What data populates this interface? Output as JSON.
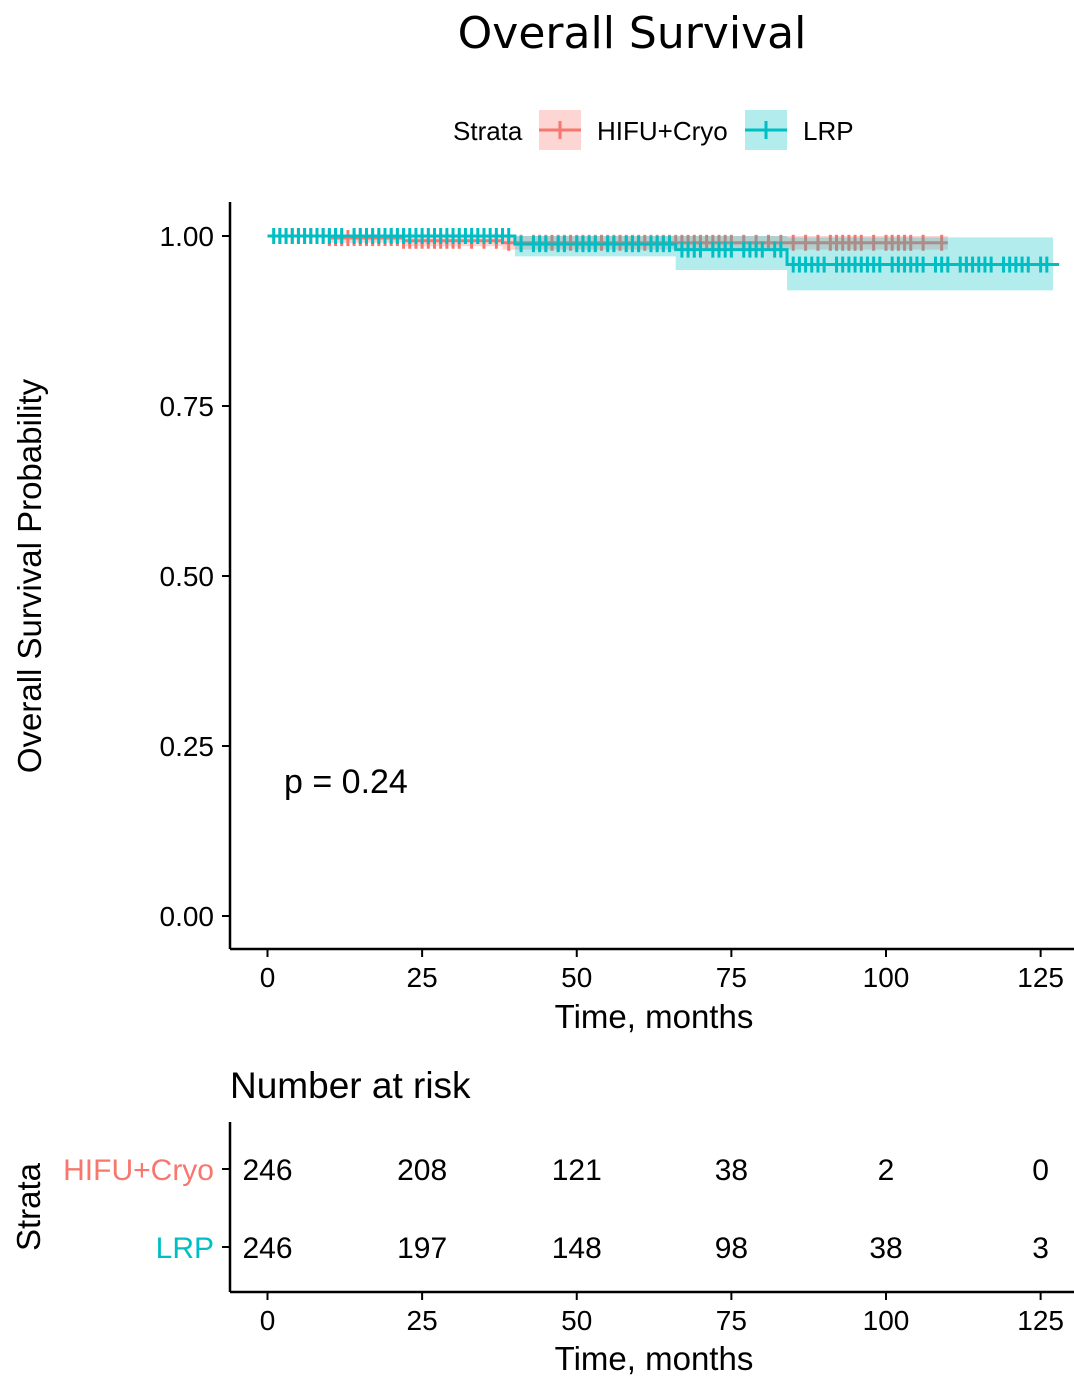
{
  "chart_data": {
    "type": "line",
    "title": "Overall Survival",
    "xlabel": "Time, months",
    "ylabel": "Overall Survival Probability",
    "xlim": [
      0,
      130
    ],
    "ylim": [
      0,
      1.05
    ],
    "x_ticks": [
      "0",
      "25",
      "50",
      "75",
      "100",
      "125"
    ],
    "y_ticks": [
      "0.00",
      "0.25",
      "0.50",
      "0.75",
      "1.00"
    ],
    "legend": {
      "title": "Strata",
      "position": "top"
    },
    "annotation": "p = 0.24",
    "grid": false,
    "series": [
      {
        "name": "HIFU+Cryo",
        "color": "#F8766D",
        "steps": [
          [
            0,
            1.0
          ],
          [
            10,
            0.997
          ],
          [
            22,
            0.993
          ],
          [
            38,
            0.99
          ],
          [
            110,
            0.99
          ]
        ],
        "ci": [
          [
            0,
            1.0,
            1.0
          ],
          [
            10,
            0.99,
            1.0
          ],
          [
            22,
            0.985,
            1.0
          ],
          [
            38,
            0.98,
            1.0
          ],
          [
            110,
            0.975,
            1.0
          ]
        ],
        "censors": [
          2,
          3,
          4,
          5,
          6,
          7,
          8,
          9,
          10,
          11,
          12,
          13,
          14,
          15,
          16,
          17,
          18,
          19,
          20,
          21,
          22,
          23,
          24,
          25,
          26,
          27,
          28,
          29,
          30,
          31,
          33,
          35,
          37,
          39,
          41,
          43,
          44,
          45,
          46,
          47,
          48,
          49,
          50,
          51,
          52,
          53,
          54,
          55,
          56,
          57,
          58,
          59,
          60,
          61,
          62,
          63,
          64,
          65,
          66,
          67,
          68,
          69,
          70,
          71,
          72,
          73,
          74,
          75,
          77,
          79,
          81,
          83,
          85,
          87,
          89,
          91,
          92,
          93,
          94,
          95,
          96,
          98,
          100,
          101,
          102,
          103,
          104,
          106,
          109
        ]
      },
      {
        "name": "LRP",
        "color": "#00BFC4",
        "steps": [
          [
            0,
            1.0
          ],
          [
            40,
            0.988
          ],
          [
            66,
            0.98
          ],
          [
            84,
            0.958
          ],
          [
            128,
            0.958
          ]
        ],
        "ci": [
          [
            0,
            1.0,
            1.0
          ],
          [
            40,
            0.97,
            1.0
          ],
          [
            66,
            0.95,
            1.0
          ],
          [
            84,
            0.92,
            0.998
          ],
          [
            127,
            0.92,
            0.998
          ]
        ],
        "censors": [
          1,
          2,
          3,
          4,
          5,
          6,
          7,
          8,
          9,
          10,
          11,
          12,
          14,
          15,
          16,
          17,
          18,
          19,
          20,
          21,
          22,
          23,
          24,
          25,
          26,
          27,
          28,
          29,
          30,
          31,
          32,
          33,
          34,
          35,
          36,
          37,
          38,
          39,
          41,
          43,
          44,
          45,
          47,
          48,
          50,
          51,
          52,
          53,
          55,
          56,
          58,
          59,
          60,
          62,
          63,
          64,
          65,
          67,
          68,
          69,
          70,
          72,
          73,
          74,
          75,
          77,
          78,
          79,
          80,
          82,
          83,
          85,
          86,
          87,
          88,
          89,
          90,
          92,
          93,
          94,
          95,
          96,
          97,
          98,
          99,
          101,
          102,
          103,
          104,
          105,
          106,
          108,
          109,
          110,
          112,
          113,
          114,
          115,
          116,
          117,
          119,
          120,
          121,
          122,
          123,
          125,
          126
        ]
      }
    ],
    "risk_table": {
      "title": "Number at risk",
      "ylabel": "Strata",
      "xlabel": "Time, months",
      "times": [
        0,
        25,
        50,
        75,
        100,
        125
      ],
      "x_ticks": [
        "0",
        "25",
        "50",
        "75",
        "100",
        "125"
      ],
      "rows": [
        {
          "label": "HIFU+Cryo",
          "color": "#F8766D",
          "values": [
            "246",
            "208",
            "121",
            "38",
            "2",
            "0"
          ]
        },
        {
          "label": "LRP",
          "color": "#00BFC4",
          "values": [
            "246",
            "197",
            "148",
            "98",
            "38",
            "3"
          ]
        }
      ]
    }
  }
}
